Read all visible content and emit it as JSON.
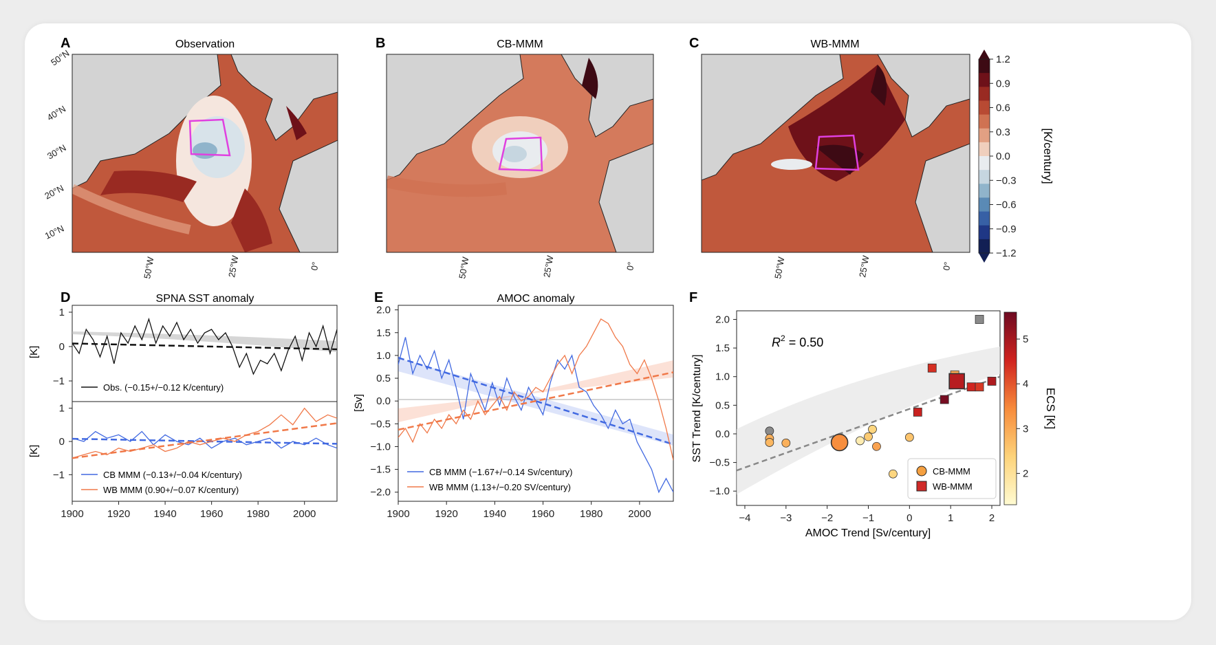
{
  "figure": {
    "panels": {
      "A": {
        "letter": "A",
        "title": "Observation"
      },
      "B": {
        "letter": "B",
        "title": "CB-MMM"
      },
      "C": {
        "letter": "C",
        "title": "WB-MMM"
      },
      "D": {
        "letter": "D",
        "title": "SPNA SST anomaly"
      },
      "E": {
        "letter": "E",
        "title": "AMOC anomaly"
      },
      "F": {
        "letter": "F",
        "title": ""
      }
    },
    "map_lat_labels": [
      "50°N",
      "40°N",
      "30°N",
      "20°N",
      "10°N"
    ],
    "map_lon_labels": [
      "50°W",
      "25°W",
      "0°"
    ],
    "colorbar": {
      "label": "[K/century]",
      "ticks": [
        "1.2",
        "0.9",
        "0.6",
        "0.3",
        "0.0",
        "−0.3",
        "−0.6",
        "−0.9",
        "−1.2"
      ],
      "colors": [
        "#3d0a14",
        "#6e1119",
        "#992a22",
        "#b84a33",
        "#cf7252",
        "#e2a083",
        "#f0cfbd",
        "#e9ecef",
        "#c6d6e0",
        "#90b4cb",
        "#5a8ab5",
        "#3760a5",
        "#1f3785",
        "#121f54"
      ]
    },
    "colors": {
      "cb": "#4169e1",
      "wb": "#f07848",
      "obs": "#111111",
      "box": "#e040e0",
      "land": "#d3d3d3"
    }
  },
  "chart_data": [
    {
      "panel": "D-top",
      "type": "line",
      "ylabel": "[K]",
      "ylim": [
        -1.6,
        1.2
      ],
      "yticks": [
        "1",
        "0",
        "−1"
      ],
      "legend": "Obs. (−0.15+/−0.12 K/century)",
      "legend_loc": "lower-left",
      "series": [
        {
          "name": "Obs. (−0.15+/−0.12 K/century)",
          "color": "#111111",
          "x": [
            1900,
            1903,
            1906,
            1909,
            1912,
            1915,
            1918,
            1921,
            1924,
            1927,
            1930,
            1933,
            1936,
            1939,
            1942,
            1945,
            1948,
            1951,
            1954,
            1957,
            1960,
            1963,
            1966,
            1969,
            1972,
            1975,
            1978,
            1981,
            1984,
            1987,
            1990,
            1993,
            1996,
            1999,
            2002,
            2005,
            2008,
            2011,
            2014
          ],
          "values": [
            0.1,
            -0.2,
            0.5,
            0.2,
            -0.3,
            0.3,
            -0.5,
            0.4,
            0.1,
            0.6,
            0.2,
            0.8,
            0.1,
            0.6,
            0.3,
            0.7,
            0.2,
            0.5,
            0.1,
            0.4,
            0.5,
            0.2,
            0.4,
            0.0,
            -0.6,
            -0.2,
            -0.8,
            -0.4,
            -0.5,
            -0.2,
            -0.7,
            -0.1,
            0.3,
            -0.4,
            0.4,
            0.0,
            0.6,
            -0.2,
            0.5
          ]
        },
        {
          "name": "trend",
          "color": "#111111",
          "dashed": true,
          "x": [
            1900,
            2014
          ],
          "values": [
            0.09,
            -0.08
          ]
        }
      ]
    },
    {
      "panel": "D-bottom",
      "type": "line",
      "ylabel": "[K]",
      "xlabel": "",
      "xlim": [
        1900,
        2014
      ],
      "xticks": [
        1900,
        1920,
        1940,
        1960,
        1980,
        2000
      ],
      "ylim": [
        -1.8,
        1.2
      ],
      "yticks": [
        "1",
        "0",
        "−1"
      ],
      "legend_loc": "lower-left",
      "series": [
        {
          "name": "CB MMM (−0.13+/−0.04 K/century)",
          "color": "#4169e1",
          "x": [
            1900,
            1905,
            1910,
            1915,
            1920,
            1925,
            1930,
            1935,
            1940,
            1945,
            1950,
            1955,
            1960,
            1965,
            1970,
            1975,
            1980,
            1985,
            1990,
            1995,
            2000,
            2005,
            2010,
            2014
          ],
          "values": [
            0.1,
            0.0,
            0.3,
            0.1,
            0.2,
            0.0,
            0.3,
            -0.1,
            0.2,
            0.0,
            -0.1,
            0.1,
            -0.2,
            0.0,
            0.1,
            -0.1,
            0.0,
            0.1,
            -0.2,
            0.0,
            -0.1,
            0.1,
            -0.1,
            -0.2
          ]
        },
        {
          "name": "CB trend",
          "color": "#4169e1",
          "dashed": true,
          "x": [
            1900,
            2014
          ],
          "values": [
            0.08,
            -0.07
          ]
        },
        {
          "name": "WB MMM (0.90+/−0.07 K/century)",
          "color": "#f07848",
          "x": [
            1900,
            1905,
            1910,
            1915,
            1920,
            1925,
            1930,
            1935,
            1940,
            1945,
            1950,
            1955,
            1960,
            1965,
            1970,
            1975,
            1980,
            1985,
            1990,
            1995,
            2000,
            2005,
            2010,
            2014
          ],
          "values": [
            -0.5,
            -0.4,
            -0.3,
            -0.4,
            -0.2,
            -0.3,
            -0.2,
            -0.1,
            -0.3,
            -0.2,
            0.0,
            -0.1,
            0.0,
            0.1,
            0.0,
            0.2,
            0.3,
            0.5,
            0.8,
            0.5,
            1.0,
            0.6,
            0.8,
            0.7
          ]
        },
        {
          "name": "WB trend",
          "color": "#f07848",
          "dashed": true,
          "x": [
            1900,
            2014
          ],
          "values": [
            -0.5,
            0.55
          ]
        }
      ]
    },
    {
      "panel": "E",
      "type": "line",
      "ylabel": "[Sv]",
      "xlim": [
        1900,
        2014
      ],
      "xticks": [
        1900,
        1920,
        1940,
        1960,
        1980,
        2000
      ],
      "ylim": [
        -2.2,
        2.1
      ],
      "yticks": [
        2.0,
        1.5,
        1.0,
        0.5,
        0.0,
        -0.5,
        -1.0,
        -1.5,
        -2.0
      ],
      "legend_loc": "lower-left",
      "series": [
        {
          "name": "CB MMM (−1.67+/−0.14 Sv/century)",
          "color": "#4169e1",
          "x": [
            1900,
            1903,
            1906,
            1909,
            1912,
            1915,
            1918,
            1921,
            1924,
            1927,
            1930,
            1933,
            1936,
            1939,
            1942,
            1945,
            1948,
            1951,
            1954,
            1957,
            1960,
            1963,
            1966,
            1969,
            1972,
            1975,
            1978,
            1981,
            1984,
            1987,
            1990,
            1993,
            1996,
            1999,
            2002,
            2005,
            2008,
            2011,
            2014
          ],
          "values": [
            0.8,
            1.4,
            0.6,
            1.0,
            0.7,
            1.1,
            0.5,
            0.9,
            0.3,
            -0.4,
            0.6,
            0.2,
            -0.2,
            0.4,
            -0.1,
            0.5,
            0.1,
            -0.2,
            0.3,
            0.0,
            -0.3,
            0.4,
            0.9,
            0.7,
            1.0,
            0.3,
            0.2,
            -0.1,
            -0.3,
            -0.6,
            -0.2,
            -0.5,
            -0.4,
            -0.9,
            -1.2,
            -1.5,
            -2.0,
            -1.7,
            -2.0
          ]
        },
        {
          "name": "CB trend",
          "color": "#4169e1",
          "dashed": true,
          "x": [
            1900,
            2014
          ],
          "values": [
            0.95,
            -0.95
          ]
        },
        {
          "name": "WB MMM (1.13+/−0.20 SV/century)",
          "color": "#f07848",
          "x": [
            1900,
            1903,
            1906,
            1909,
            1912,
            1915,
            1918,
            1921,
            1924,
            1927,
            1930,
            1933,
            1936,
            1939,
            1942,
            1945,
            1948,
            1951,
            1954,
            1957,
            1960,
            1963,
            1966,
            1969,
            1972,
            1975,
            1978,
            1981,
            1984,
            1987,
            1990,
            1993,
            1996,
            1999,
            2002,
            2005,
            2008,
            2011,
            2014
          ],
          "values": [
            -0.8,
            -0.6,
            -0.9,
            -0.5,
            -0.7,
            -0.4,
            -0.6,
            -0.3,
            -0.5,
            -0.2,
            -0.4,
            0.0,
            -0.3,
            -0.1,
            0.1,
            -0.2,
            0.2,
            0.0,
            0.1,
            0.3,
            0.2,
            0.5,
            0.8,
            1.0,
            0.6,
            1.0,
            1.2,
            1.5,
            1.8,
            1.7,
            1.4,
            1.2,
            0.8,
            0.6,
            0.9,
            0.5,
            0.0,
            -0.6,
            -1.3
          ]
        },
        {
          "name": "WB trend",
          "color": "#f07848",
          "dashed": true,
          "x": [
            1900,
            2014
          ],
          "values": [
            -0.63,
            0.63
          ]
        }
      ]
    },
    {
      "panel": "F",
      "type": "scatter",
      "xlabel": "AMOC Trend [Sv/century]",
      "ylabel": "SST Trend [K/century]",
      "xlim": [
        -4.2,
        2.2
      ],
      "ylim": [
        -1.25,
        2.15
      ],
      "xticks": [
        "−4",
        "−3",
        "−2",
        "−1",
        "0",
        "1",
        "2"
      ],
      "yticks": [
        "2.0",
        "1.5",
        "1.0",
        "0.5",
        "0.0",
        "−0.5",
        "−1.0"
      ],
      "annotation": "R² = 0.50",
      "colorbar": {
        "label": "ECS [K]",
        "ticks": [
          2,
          3,
          4,
          5
        ],
        "range": [
          1.3,
          5.6
        ]
      },
      "regression": {
        "x": [
          -4.2,
          2.2
        ],
        "y": [
          -0.64,
          1.0
        ]
      },
      "legend_loc": "lower-right",
      "legend": [
        {
          "marker": "circle",
          "name": "CB-MMM"
        },
        {
          "marker": "square",
          "name": "WB-MMM"
        }
      ],
      "points": [
        {
          "group": "CB-MMM",
          "x": -3.4,
          "y": 0.05,
          "ecs": null
        },
        {
          "group": "CB-MMM",
          "x": -3.4,
          "y": -0.08,
          "ecs": 2.9
        },
        {
          "group": "CB-MMM",
          "x": -3.4,
          "y": -0.15,
          "ecs": 2.8
        },
        {
          "group": "CB-MMM",
          "x": -3.0,
          "y": -0.16,
          "ecs": 2.9
        },
        {
          "group": "CB-MMM",
          "x": -1.7,
          "y": -0.15,
          "ecs": 3.4,
          "big": true
        },
        {
          "group": "CB-MMM",
          "x": -1.2,
          "y": -0.12,
          "ecs": 1.7
        },
        {
          "group": "CB-MMM",
          "x": -1.0,
          "y": -0.05,
          "ecs": 2.5
        },
        {
          "group": "CB-MMM",
          "x": -0.9,
          "y": 0.08,
          "ecs": 2.3
        },
        {
          "group": "CB-MMM",
          "x": -0.8,
          "y": -0.22,
          "ecs": 3.1
        },
        {
          "group": "CB-MMM",
          "x": -0.4,
          "y": -0.7,
          "ecs": 2.3
        },
        {
          "group": "CB-MMM",
          "x": 0.0,
          "y": -0.06,
          "ecs": 2.6
        },
        {
          "group": "WB-MMM",
          "x": 0.2,
          "y": 0.38,
          "ecs": 4.6
        },
        {
          "group": "WB-MMM",
          "x": 0.55,
          "y": 1.15,
          "ecs": 4.4
        },
        {
          "group": "WB-MMM",
          "x": 0.85,
          "y": 0.6,
          "ecs": 5.5
        },
        {
          "group": "WB-MMM",
          "x": 1.1,
          "y": 1.03,
          "ecs": 3.0
        },
        {
          "group": "WB-MMM",
          "x": 1.15,
          "y": 0.92,
          "ecs": 4.8,
          "big": true
        },
        {
          "group": "WB-MMM",
          "x": 1.5,
          "y": 0.82,
          "ecs": 4.5
        },
        {
          "group": "WB-MMM",
          "x": 1.7,
          "y": 0.82,
          "ecs": 4.3
        },
        {
          "group": "WB-MMM",
          "x": 1.7,
          "y": 2.0,
          "ecs": null
        },
        {
          "group": "WB-MMM",
          "x": 2.0,
          "y": 0.92,
          "ecs": 4.9
        }
      ]
    }
  ]
}
